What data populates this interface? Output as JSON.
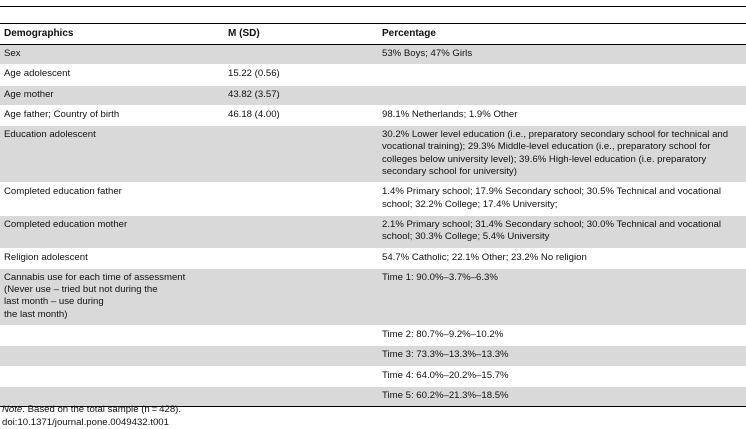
{
  "headers": [
    "Demographics",
    "M (SD)",
    "Percentage"
  ],
  "rows": [
    {
      "label": "Sex",
      "msd": "",
      "pct": "53% Boys; 47% Girls",
      "shade": true
    },
    {
      "label": "Age adolescent",
      "msd": "15.22 (0.56)",
      "pct": "",
      "shade": false
    },
    {
      "label": "Age mother",
      "msd": "43.82 (3.57)",
      "pct": "",
      "shade": true
    },
    {
      "label": "Age father; Country of birth",
      "msd": "46.18 (4.00)",
      "pct": "98.1% Netherlands; 1.9% Other",
      "shade": false
    },
    {
      "label": "Education adolescent",
      "msd": "",
      "pct": "30.2% Lower level education (i.e., preparatory secondary school for technical and vocational training); 29.3% Middle-level education (i.e., preparatory school for colleges below university level); 39.6% High-level education (i.e. preparatory secondary school for university)",
      "shade": true
    },
    {
      "label": "Completed education father",
      "msd": "",
      "pct": "1.4% Primary school; 17.9% Secondary school; 30.5% Technical and vocational school; 32.2% College; 17.4% University;",
      "shade": false
    },
    {
      "label": "Completed education mother",
      "msd": "",
      "pct": "2.1% Primary school; 31.4% Secondary school; 30.0% Technical and vocational school; 30.3% College; 5.4% University",
      "shade": true
    },
    {
      "label": "Religion adolescent",
      "msd": "",
      "pct": "54.7% Catholic; 22.1% Other; 23.2% No religion",
      "shade": false
    },
    {
      "label": "Cannabis use for each time of assessment\n(Never use – tried but not during the\nlast month – use during\nthe last month)",
      "msd": "",
      "pct": "Time 1: 90.0%–3.7%–6.3%",
      "shade": true,
      "tall": true
    },
    {
      "label": "",
      "msd": "",
      "pct": "Time 2: 80.7%–9.2%–10.2%",
      "shade": false
    },
    {
      "label": "",
      "msd": "",
      "pct": "Time 3: 73.3%–13.3%–13.3%",
      "shade": true
    },
    {
      "label": "",
      "msd": "",
      "pct": "Time 4: 64.0%–20.2%–15.7%",
      "shade": false
    },
    {
      "label": "",
      "msd": "",
      "pct": "Time 5: 60.2%–21.3%–18.5%",
      "shade": true
    }
  ],
  "note_label": "Note",
  "note_text": ". Based on the total sample (n = 428).",
  "doi": "doi:10.1371/journal.pone.0049432.t001"
}
